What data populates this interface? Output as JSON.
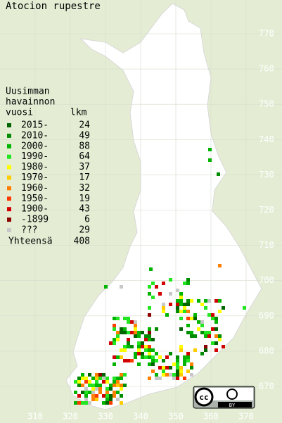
{
  "title": "Atocion rupestre",
  "legend": {
    "heading": [
      "Uusimman",
      "havainnon"
    ],
    "column_year": "vuosi",
    "column_count": "lkm",
    "rows": [
      {
        "label": "2015-",
        "count": "24",
        "color": "#006400"
      },
      {
        "label": "2010-",
        "count": "49",
        "color": "#008c00"
      },
      {
        "label": "2000-",
        "count": "88",
        "color": "#00b400"
      },
      {
        "label": "1990-",
        "count": "64",
        "color": "#22e622"
      },
      {
        "label": "1980-",
        "count": "37",
        "color": "#ffff00"
      },
      {
        "label": "1970-",
        "count": "17",
        "color": "#ffcc00"
      },
      {
        "label": "1960-",
        "count": "32",
        "color": "#ff7f00"
      },
      {
        "label": "1950-",
        "count": "19",
        "color": "#ff3c00"
      },
      {
        "label": "1900-",
        "count": "43",
        "color": "#d20000"
      },
      {
        "label": "-1899",
        "count": "6",
        "color": "#8c0000"
      },
      {
        "label": "???",
        "count": "29",
        "color": "#c8c8c8"
      }
    ],
    "total_label": "Yhteensä",
    "total": "408"
  },
  "grid_north": [
    "770",
    "760",
    "750",
    "740",
    "730",
    "720",
    "710",
    "700",
    "690",
    "680",
    "670"
  ],
  "grid_east": [
    "310",
    "320",
    "330",
    "340",
    "350",
    "360",
    "370"
  ],
  "license": {
    "symbol": "cc",
    "type": "BY"
  }
}
